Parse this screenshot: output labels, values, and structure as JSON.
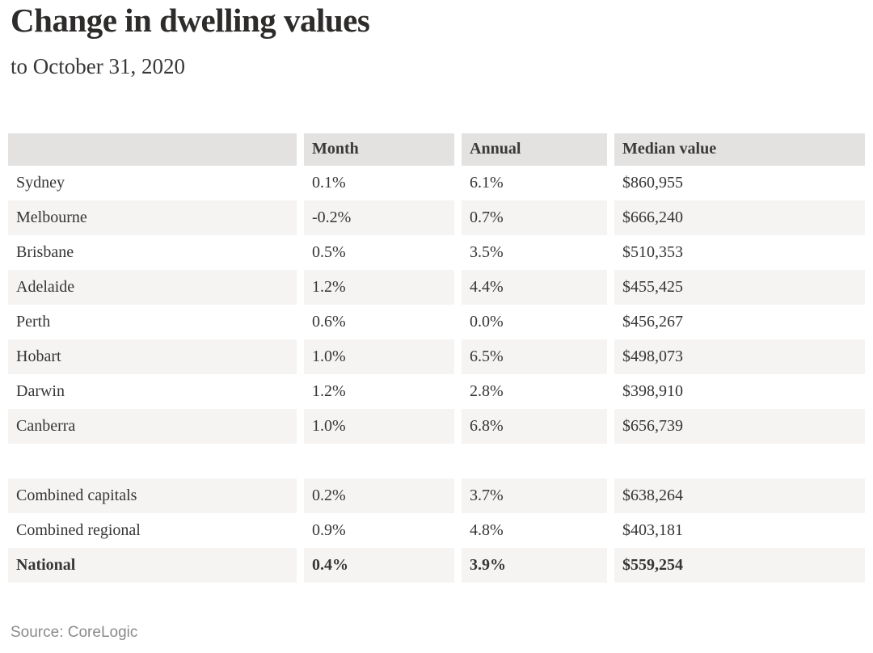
{
  "chart_data": {
    "type": "table",
    "title": "Change in dwelling values",
    "subtitle": "to October 31, 2020",
    "source": "Source: CoreLogic",
    "columns": [
      "",
      "Month",
      "Annual",
      "Median value"
    ],
    "rows": [
      {
        "label": "Sydney",
        "month": "0.1%",
        "annual": "6.1%",
        "median": "$860,955"
      },
      {
        "label": "Melbourne",
        "month": "-0.2%",
        "annual": "0.7%",
        "median": "$666,240"
      },
      {
        "label": "Brisbane",
        "month": "0.5%",
        "annual": "3.5%",
        "median": "$510,353"
      },
      {
        "label": "Adelaide",
        "month": "1.2%",
        "annual": "4.4%",
        "median": "$455,425"
      },
      {
        "label": "Perth",
        "month": "0.6%",
        "annual": "0.0%",
        "median": "$456,267"
      },
      {
        "label": "Hobart",
        "month": "1.0%",
        "annual": "6.5%",
        "median": "$498,073"
      },
      {
        "label": "Darwin",
        "month": "1.2%",
        "annual": "2.8%",
        "median": "$398,910"
      },
      {
        "label": "Canberra",
        "month": "1.0%",
        "annual": "6.8%",
        "median": "$656,739"
      }
    ],
    "summary_rows": [
      {
        "label": "Combined capitals",
        "month": "0.2%",
        "annual": "3.7%",
        "median": "$638,264"
      },
      {
        "label": "Combined regional",
        "month": "0.9%",
        "annual": "4.8%",
        "median": "$403,181"
      },
      {
        "label": "National",
        "month": "0.4%",
        "annual": "3.9%",
        "median": "$559,254"
      }
    ],
    "layout": {
      "header_bg": "#e3e2e1",
      "stripe_bg": "#f5f4f2",
      "text_color": "#363534",
      "title_color": "#2d2c2b",
      "source_color": "#8b8b8b",
      "grid": "off",
      "legend": "none"
    }
  }
}
